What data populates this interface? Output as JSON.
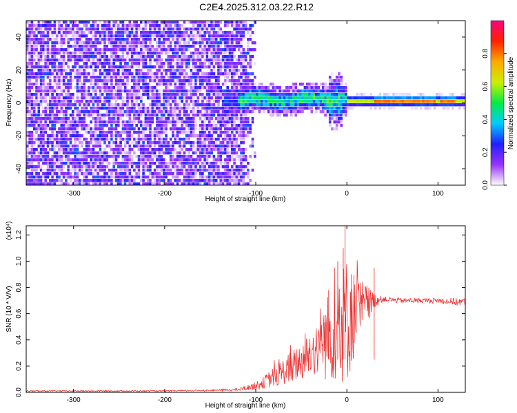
{
  "title": "C2E4.2025.312.03.22.R12",
  "chart_data": [
    {
      "type": "heatmap",
      "xlabel": "Height of straight line (km)",
      "ylabel": "Frequency (Hz)",
      "xlim": [
        -352,
        130
      ],
      "ylim": [
        -50,
        50
      ],
      "xticks": [
        -300,
        -200,
        -100,
        0,
        100
      ],
      "xtick_labels": [
        "-300",
        "-200",
        "-100",
        "0",
        "100"
      ],
      "yticks": [
        -40,
        -20,
        0,
        20,
        40
      ],
      "ytick_labels": [
        "-40",
        "-20",
        "0",
        "20",
        "40"
      ],
      "colorbar": {
        "label": "Normalized spectral amplitude",
        "range": [
          0,
          1
        ],
        "ticks": [
          0.0,
          0.2,
          0.4,
          0.6,
          0.8
        ],
        "tick_labels": [
          "0.0",
          "0.2",
          "0.4",
          "0.6",
          "0.8"
        ],
        "colors": [
          "#ffffff",
          "#9932ff",
          "#2020ff",
          "#00ccff",
          "#00ee44",
          "#ccee00",
          "#ffaa00",
          "#ff2200",
          "#ff0080"
        ]
      },
      "regions": [
        {
          "name": "broadband-noise",
          "x_range": [
            -352,
            -100
          ],
          "freq_range": [
            -50,
            50
          ],
          "amplitude": 0.15
        },
        {
          "name": "narrowing-band",
          "x_range": [
            -135,
            0
          ],
          "freq_center": 3,
          "freq_halfwidth": 7,
          "amplitude": 0.45
        },
        {
          "name": "steady-line",
          "x_range": [
            0,
            130
          ],
          "freq_center": 2,
          "freq_halfwidth": 2,
          "amplitude": 0.8
        }
      ]
    },
    {
      "type": "line",
      "xlabel": "Height of straight line (km)",
      "ylabel": "SNR (10 * V/V)",
      "y_multiplier": "(x10⁴)",
      "xlim": [
        -352,
        130
      ],
      "ylim": [
        0,
        1.27
      ],
      "xticks": [
        -300,
        -200,
        -100,
        0,
        100
      ],
      "xtick_labels": [
        "-300",
        "-200",
        "-100",
        "0",
        "100"
      ],
      "yticks": [
        0.0,
        0.2,
        0.4,
        0.6,
        0.8,
        1.0,
        1.2
      ],
      "ytick_labels": [
        "0.0",
        "0.2",
        "0.4",
        "0.6",
        "0.8",
        "1.0",
        "1.2"
      ],
      "series": [
        {
          "name": "SNR",
          "color": "#ee3333",
          "x": [
            -352,
            -300,
            -250,
            -200,
            -150,
            -120,
            -100,
            -90,
            -80,
            -70,
            -60,
            -50,
            -40,
            -30,
            -20,
            -10,
            0,
            10,
            20,
            30,
            40,
            60,
            80,
            100,
            120,
            130
          ],
          "y": [
            0.01,
            0.01,
            0.01,
            0.01,
            0.015,
            0.02,
            0.05,
            0.08,
            0.12,
            0.16,
            0.2,
            0.24,
            0.3,
            0.36,
            0.42,
            0.48,
            0.55,
            0.6,
            0.66,
            0.7,
            0.71,
            0.7,
            0.7,
            0.7,
            0.69,
            0.69
          ],
          "spike_amplitude": [
            0.005,
            0.005,
            0.005,
            0.005,
            0.006,
            0.01,
            0.03,
            0.05,
            0.08,
            0.1,
            0.13,
            0.15,
            0.18,
            0.24,
            0.35,
            0.4,
            0.5,
            0.3,
            0.18,
            0.06,
            0.02,
            0.02,
            0.02,
            0.02,
            0.03,
            0.03
          ],
          "peaks": [
            [
              -2,
              1.27
            ],
            [
              -4,
              1.1
            ],
            [
              -10,
              1.0
            ],
            [
              5,
              0.9
            ],
            [
              -20,
              0.78
            ],
            [
              30,
              0.95
            ]
          ]
        }
      ]
    }
  ]
}
